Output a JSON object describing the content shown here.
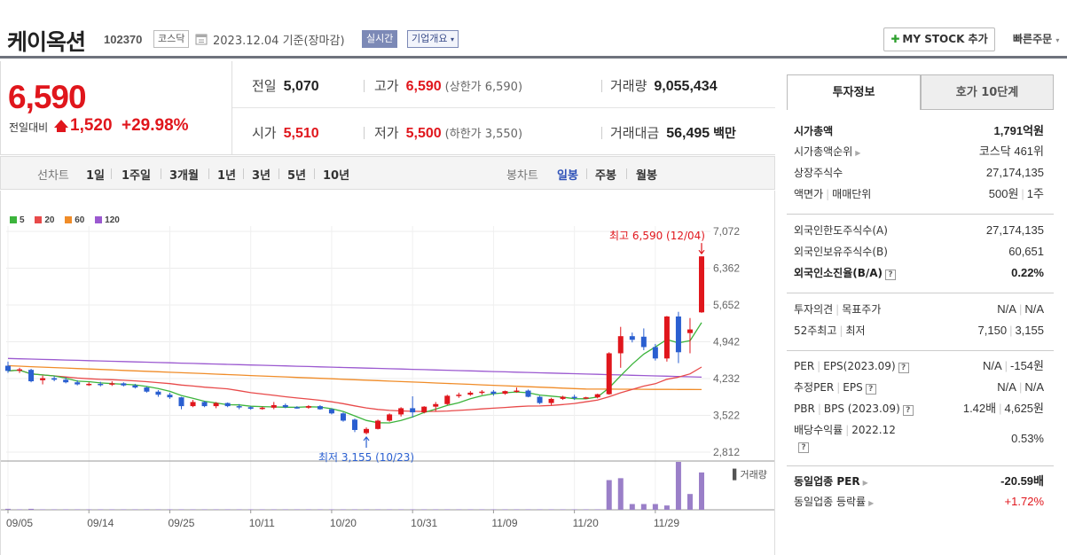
{
  "header": {
    "company_name": "케이옥션",
    "code": "102370",
    "market": "코스닥",
    "date": "2023.12.04",
    "basis": "기준(장마감)",
    "realtime": "실시간",
    "overview": "기업개요",
    "mystock_button": "MY STOCK 추가",
    "quick_order": "빠른주문"
  },
  "price": {
    "current": "6,590",
    "compare_label": "전일대비",
    "change": "1,520",
    "rate": "+29.98%"
  },
  "stats": {
    "prev": {
      "label": "전일",
      "value": "5,070"
    },
    "high": {
      "label": "고가",
      "value": "6,590",
      "sub": "(상한가 6,590)"
    },
    "volume": {
      "label": "거래량",
      "value": "9,055,434"
    },
    "open": {
      "label": "시가",
      "value": "5,510"
    },
    "low": {
      "label": "저가",
      "value": "5,500",
      "sub": "(하한가 3,550)"
    },
    "amount": {
      "label": "거래대금",
      "value": "56,495",
      "unit": "백만"
    }
  },
  "period_bar": {
    "line_label": "선차트",
    "line_items": [
      "1일",
      "1주일",
      "3개월",
      "1년",
      "3년",
      "5년",
      "10년"
    ],
    "candle_label": "봉차트",
    "candle_items": [
      "일봉",
      "주봉",
      "월봉"
    ],
    "candle_active": "일봉"
  },
  "chart_data": {
    "type": "candlestick",
    "legend": [
      {
        "name": "5",
        "color": "#3cb43c"
      },
      {
        "name": "20",
        "color": "#e84a4a"
      },
      {
        "name": "60",
        "color": "#f08c28"
      },
      {
        "name": "120",
        "color": "#9b59d0"
      }
    ],
    "y_ticks": [
      "7,072",
      "6,362",
      "5,652",
      "4,942",
      "4,232",
      "3,522",
      "2,812"
    ],
    "ylim": [
      2812,
      7072
    ],
    "x_ticks": [
      {
        "label": "09/05",
        "index": 0
      },
      {
        "label": "09/14",
        "index": 7
      },
      {
        "label": "09/25",
        "index": 14
      },
      {
        "label": "10/11",
        "index": 21
      },
      {
        "label": "10/20",
        "index": 28
      },
      {
        "label": "10/31",
        "index": 35
      },
      {
        "label": "11/09",
        "index": 42
      },
      {
        "label": "11/20",
        "index": 49
      },
      {
        "label": "11/29",
        "index": 56
      }
    ],
    "high_annotation": "최고 6,590 (12/04)",
    "low_annotation": "최저 3,155 (10/23)",
    "volume_label": "거래량",
    "candles": [
      [
        4480,
        4560,
        4340,
        4380
      ],
      [
        4390,
        4440,
        4340,
        4410
      ],
      [
        4400,
        4420,
        4160,
        4180
      ],
      [
        4200,
        4290,
        4120,
        4240
      ],
      [
        4240,
        4280,
        4180,
        4210
      ],
      [
        4210,
        4260,
        4140,
        4160
      ],
      [
        4160,
        4200,
        4100,
        4120
      ],
      [
        4120,
        4160,
        4090,
        4130
      ],
      [
        4130,
        4170,
        4080,
        4120
      ],
      [
        4120,
        4180,
        4090,
        4140
      ],
      [
        4140,
        4160,
        4080,
        4100
      ],
      [
        4100,
        4130,
        4040,
        4060
      ],
      [
        4060,
        4080,
        3960,
        3980
      ],
      [
        3980,
        4010,
        3880,
        3920
      ],
      [
        3920,
        3960,
        3840,
        3870
      ],
      [
        3870,
        3880,
        3640,
        3700
      ],
      [
        3700,
        3820,
        3680,
        3780
      ],
      [
        3780,
        3800,
        3680,
        3700
      ],
      [
        3700,
        3780,
        3660,
        3760
      ],
      [
        3760,
        3770,
        3680,
        3700
      ],
      [
        3700,
        3740,
        3640,
        3680
      ],
      [
        3680,
        3700,
        3630,
        3650
      ],
      [
        3650,
        3690,
        3630,
        3670
      ],
      [
        3670,
        3780,
        3640,
        3720
      ],
      [
        3720,
        3750,
        3660,
        3680
      ],
      [
        3680,
        3700,
        3650,
        3670
      ],
      [
        3670,
        3720,
        3650,
        3700
      ],
      [
        3700,
        3720,
        3630,
        3640
      ],
      [
        3640,
        3660,
        3540,
        3560
      ],
      [
        3560,
        3580,
        3400,
        3420
      ],
      [
        3440,
        3460,
        3200,
        3240
      ],
      [
        3180,
        3290,
        3155,
        3260
      ],
      [
        3260,
        3440,
        3250,
        3420
      ],
      [
        3420,
        3560,
        3400,
        3540
      ],
      [
        3540,
        3680,
        3500,
        3660
      ],
      [
        3660,
        3890,
        3480,
        3580
      ],
      [
        3580,
        3700,
        3560,
        3690
      ],
      [
        3690,
        3780,
        3600,
        3740
      ],
      [
        3740,
        3920,
        3720,
        3900
      ],
      [
        3900,
        3960,
        3860,
        3920
      ],
      [
        3920,
        3990,
        3900,
        3960
      ],
      [
        3960,
        4010,
        3920,
        3980
      ],
      [
        3980,
        4010,
        3900,
        3940
      ],
      [
        3940,
        4000,
        3920,
        3990
      ],
      [
        3990,
        4060,
        3960,
        4000
      ],
      [
        4000,
        4020,
        3870,
        3880
      ],
      [
        3880,
        3900,
        3740,
        3760
      ],
      [
        3760,
        3860,
        3720,
        3840
      ],
      [
        3840,
        3900,
        3820,
        3880
      ],
      [
        3880,
        3920,
        3820,
        3860
      ],
      [
        3860,
        3880,
        3840,
        3870
      ],
      [
        3870,
        3940,
        3850,
        3930
      ],
      [
        3930,
        4740,
        3920,
        4720
      ],
      [
        4720,
        5230,
        4440,
        5050
      ],
      [
        5050,
        5120,
        4930,
        4980
      ],
      [
        5040,
        5200,
        4780,
        4840
      ],
      [
        4840,
        4900,
        4580,
        4620
      ],
      [
        4620,
        5440,
        4560,
        5430
      ],
      [
        5430,
        5520,
        4530,
        4740
      ],
      [
        5110,
        5400,
        4720,
        5180
      ],
      [
        5510,
        6590,
        5500,
        6590
      ]
    ],
    "volumes": [
      0.02,
      0.01,
      0.02,
      0.01,
      0.01,
      0.01,
      0.01,
      0.01,
      0.01,
      0.01,
      0.01,
      0.01,
      0.01,
      0.01,
      0.01,
      0.01,
      0.01,
      0.01,
      0.01,
      0.01,
      0.01,
      0.01,
      0.01,
      0.01,
      0.01,
      0.01,
      0.01,
      0.01,
      0.01,
      0.01,
      0.01,
      0.01,
      0.01,
      0.01,
      0.01,
      0.01,
      0.01,
      0.01,
      0.01,
      0.01,
      0.01,
      0.01,
      0.01,
      0.01,
      0.01,
      0.01,
      0.01,
      0.01,
      0.01,
      0.01,
      0.01,
      0.01,
      0.62,
      0.66,
      0.12,
      0.12,
      0.12,
      0.09,
      1.0,
      0.33,
      0.78
    ]
  },
  "info_panel": {
    "tab_active": "투자정보",
    "tab_other": "호가 10단계",
    "market_cap": {
      "label": "시가총액",
      "value": "1,791억원"
    },
    "market_cap_rank": {
      "label": "시가총액순위",
      "value": "코스닥 461위"
    },
    "shares": {
      "label": "상장주식수",
      "value": "27,174,135"
    },
    "par_unit": {
      "label1": "액면가",
      "label2": "매매단위",
      "value1": "500원",
      "value2": "1주"
    },
    "foreign_limit": {
      "label": "외국인한도주식수(A)",
      "value": "27,174,135"
    },
    "foreign_hold": {
      "label": "외국인보유주식수(B)",
      "value": "60,651"
    },
    "foreign_ratio": {
      "label": "외국인소진율(B/A)",
      "value": "0.22%"
    },
    "opinion": {
      "label1": "투자의견",
      "label2": "목표주가",
      "value1": "N/A",
      "value2": "N/A"
    },
    "week52": {
      "label1": "52주최고",
      "label2": "최저",
      "value1": "7,150",
      "value2": "3,155"
    },
    "per_eps": {
      "label1": "PER",
      "label2": "EPS(2023.09)",
      "value1": "N/A",
      "value2": "-154원"
    },
    "est_per_eps": {
      "label1": "추정PER",
      "label2": "EPS",
      "value1": "N/A",
      "value2": "N/A"
    },
    "pbr_bps": {
      "label1": "PBR",
      "label2": "BPS (2023.09)",
      "value1": "1.42배",
      "value2": "4,625원"
    },
    "dividend": {
      "label": "배당수익률",
      "label2": "2022.12",
      "value": "0.53%"
    },
    "industry_per": {
      "label": "동일업종 PER",
      "value": "-20.59배"
    },
    "industry_rate": {
      "label": "동일업종 등락률",
      "value": "+1.72%"
    }
  }
}
